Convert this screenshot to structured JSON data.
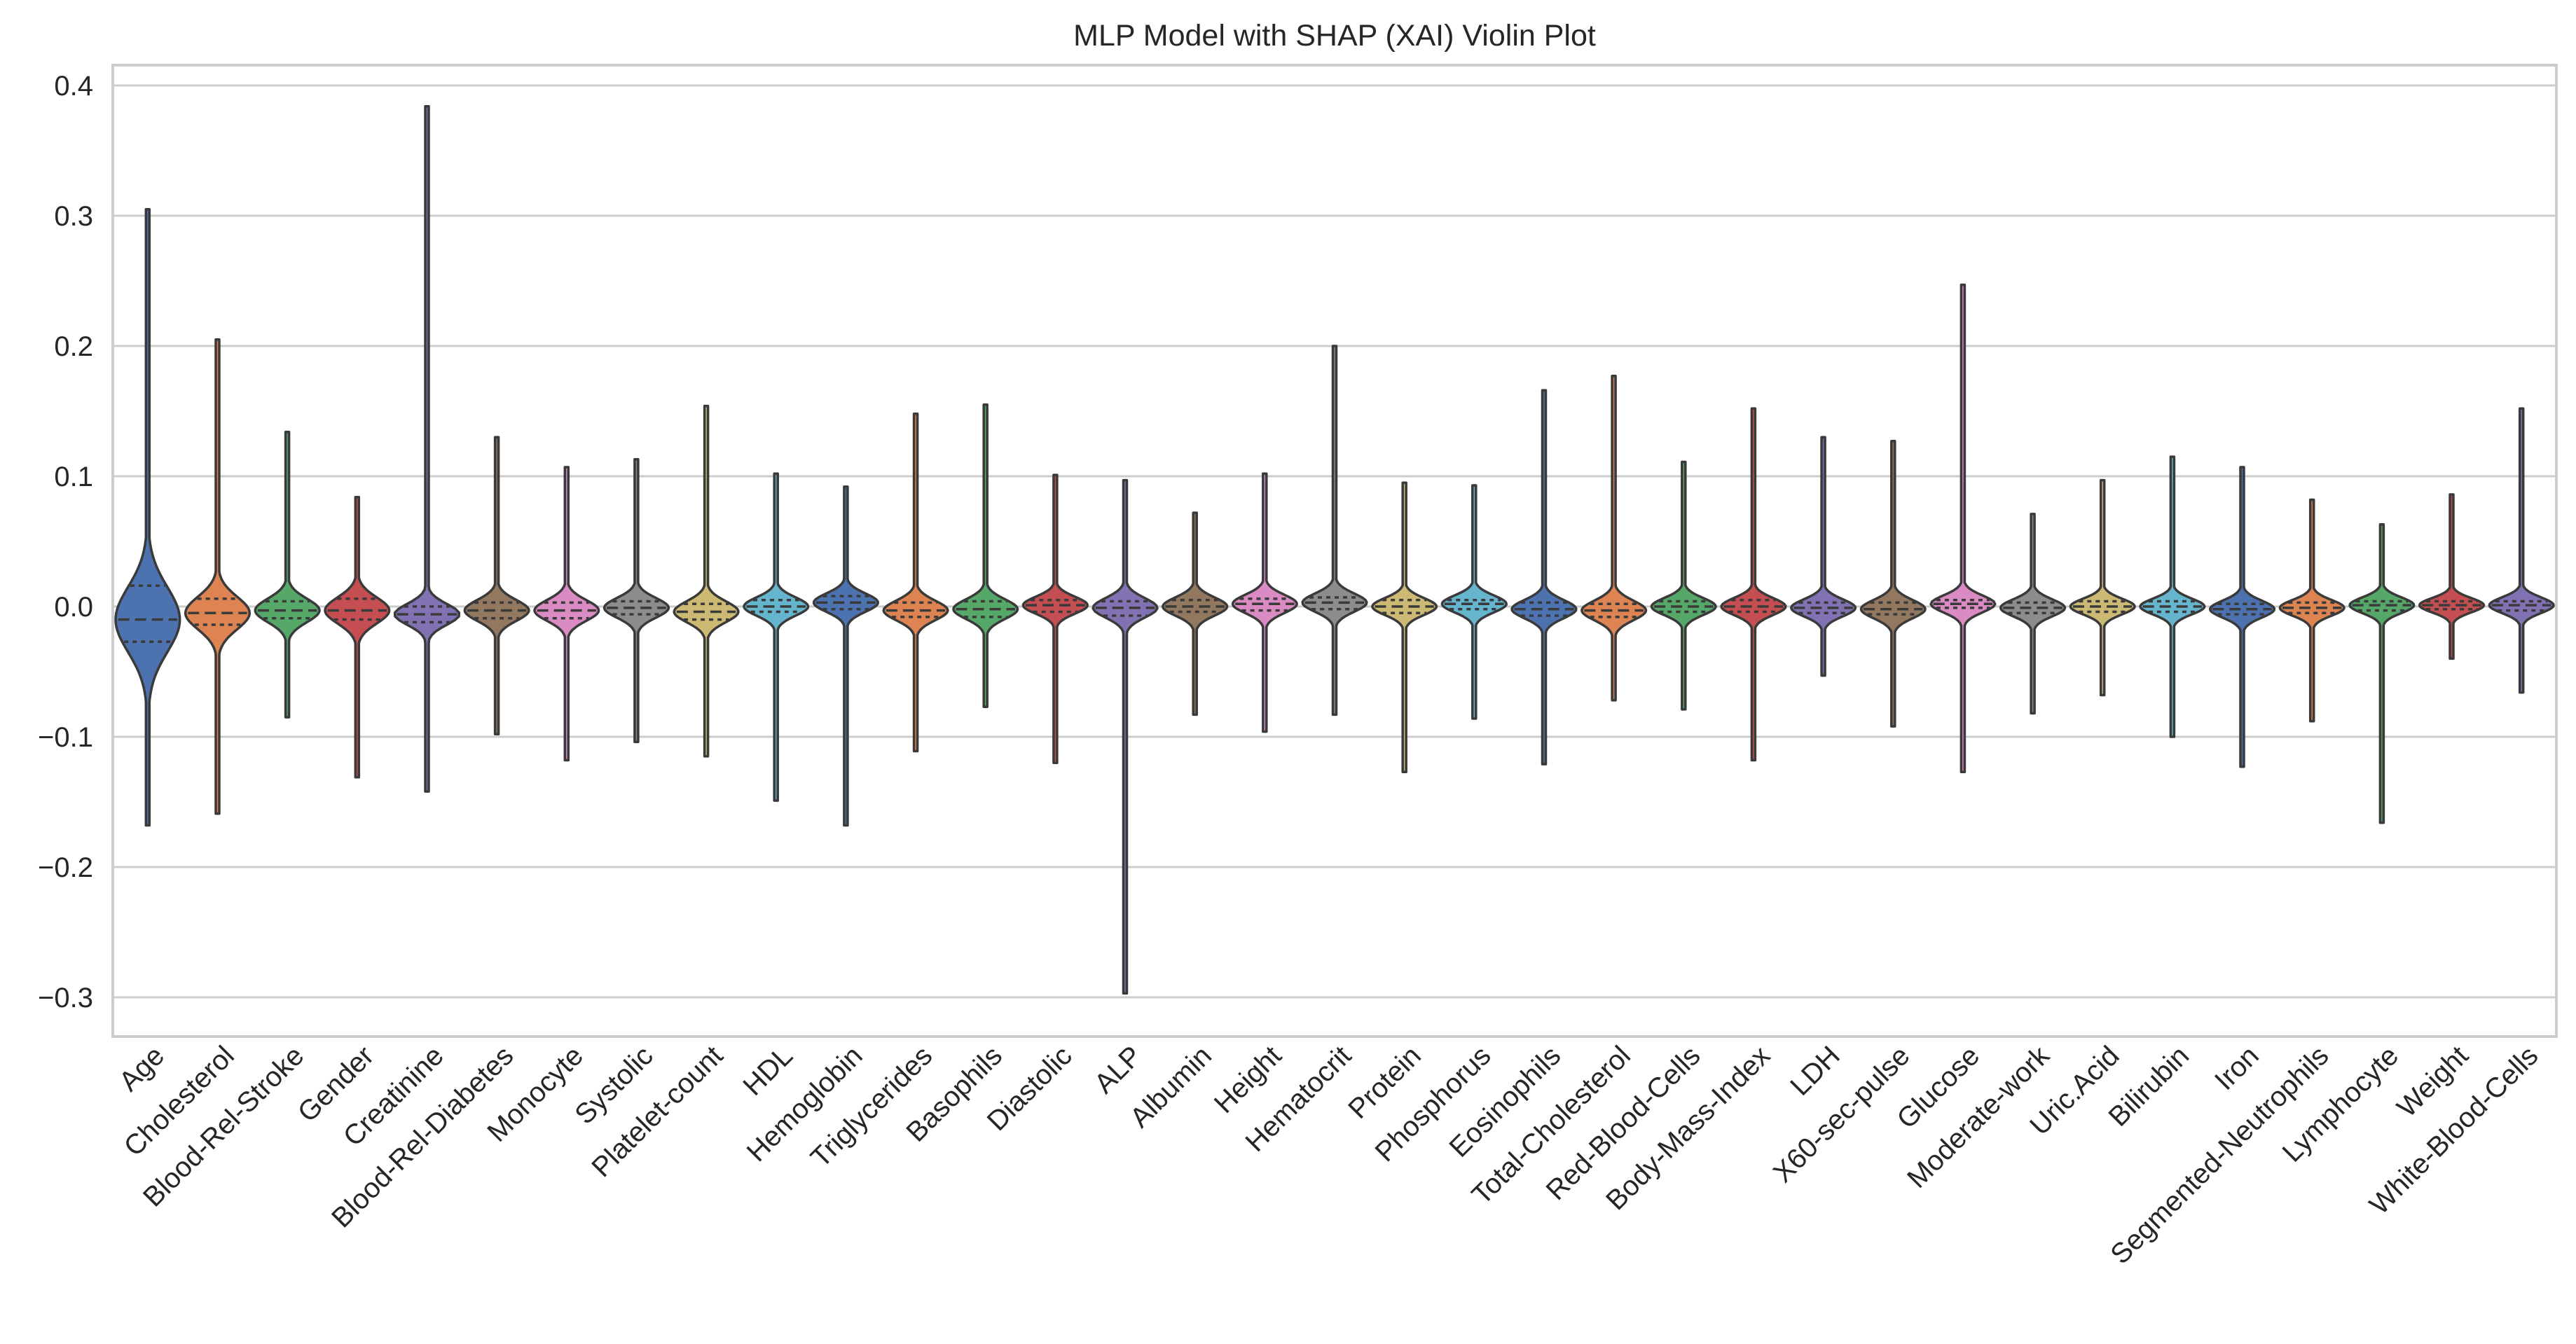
{
  "chart_data": {
    "type": "violin",
    "title": "MLP Model with SHAP (XAI) Violin Plot",
    "xlabel": "",
    "ylabel": "",
    "ylim": [
      -0.33,
      0.42
    ],
    "yticks": [
      0.4,
      0.3,
      0.2,
      0.1,
      0.0,
      -0.1,
      -0.2,
      -0.3
    ],
    "ytick_labels": [
      "0.4",
      "0.3",
      "0.2",
      "0.1",
      "0.0",
      "−0.1",
      "−0.2",
      "−0.3"
    ],
    "grid": true,
    "inner": "quartile",
    "colors": [
      "#4c72b0",
      "#dd8452",
      "#55a868",
      "#c44e52",
      "#8172b3",
      "#937860",
      "#da8bc3",
      "#8c8c8c",
      "#ccb974",
      "#64b5cd"
    ],
    "categories": [
      "Age",
      "Cholesterol",
      "Blood-Rel-Stroke",
      "Gender",
      "Creatinine",
      "Blood-Rel-Diabetes",
      "Monocyte",
      "Systolic",
      "Platelet-count",
      "HDL",
      "Hemoglobin",
      "Triglycerides",
      "Basophils",
      "Diastolic",
      "ALP",
      "Albumin",
      "Height",
      "Hematocrit",
      "Protein",
      "Phosphorus",
      "Eosinophils",
      "Total-Cholesterol",
      "Red-Blood-Cells",
      "Body-Mass-Index",
      "LDH",
      "X60-sec-pulse",
      "Glucose",
      "Moderate-work",
      "Uric.Acid",
      "Bilirubin",
      "Iron",
      "Segmented-Neutrophils",
      "Lymphocyte",
      "Weight",
      "White-Blood-Cells"
    ],
    "series": [
      {
        "name": "Age",
        "min": -0.168,
        "max": 0.305,
        "q1": -0.027,
        "median": -0.01,
        "q3": 0.016,
        "spread": 0.05
      },
      {
        "name": "Cholesterol",
        "min": -0.159,
        "max": 0.205,
        "q1": -0.014,
        "median": -0.005,
        "q3": 0.006,
        "spread": 0.025
      },
      {
        "name": "Blood-Rel-Stroke",
        "min": -0.085,
        "max": 0.134,
        "q1": -0.009,
        "median": -0.003,
        "q3": 0.004,
        "spread": 0.018
      },
      {
        "name": "Gender",
        "min": -0.131,
        "max": 0.084,
        "q1": -0.01,
        "median": -0.003,
        "q3": 0.006,
        "spread": 0.02
      },
      {
        "name": "Creatinine",
        "min": -0.142,
        "max": 0.384,
        "q1": -0.012,
        "median": -0.006,
        "q3": 0.0,
        "spread": 0.016
      },
      {
        "name": "Blood-Rel-Diabetes",
        "min": -0.098,
        "max": 0.13,
        "q1": -0.009,
        "median": -0.003,
        "q3": 0.003,
        "spread": 0.016
      },
      {
        "name": "Monocyte",
        "min": -0.118,
        "max": 0.107,
        "q1": -0.009,
        "median": -0.003,
        "q3": 0.003,
        "spread": 0.016
      },
      {
        "name": "Systolic",
        "min": -0.104,
        "max": 0.113,
        "q1": -0.006,
        "median": -0.001,
        "q3": 0.004,
        "spread": 0.015
      },
      {
        "name": "Platelet-count",
        "min": -0.115,
        "max": 0.154,
        "q1": -0.01,
        "median": -0.004,
        "q3": 0.002,
        "spread": 0.016
      },
      {
        "name": "HDL",
        "min": -0.149,
        "max": 0.102,
        "q1": -0.004,
        "median": 0.0,
        "q3": 0.005,
        "spread": 0.014
      },
      {
        "name": "Hemoglobin",
        "min": -0.168,
        "max": 0.092,
        "q1": -0.002,
        "median": 0.003,
        "q3": 0.008,
        "spread": 0.014
      },
      {
        "name": "Triglycerides",
        "min": -0.111,
        "max": 0.148,
        "q1": -0.008,
        "median": -0.003,
        "q3": 0.003,
        "spread": 0.015
      },
      {
        "name": "Basophils",
        "min": -0.077,
        "max": 0.155,
        "q1": -0.008,
        "median": -0.002,
        "q3": 0.004,
        "spread": 0.015
      },
      {
        "name": "Diastolic",
        "min": -0.12,
        "max": 0.101,
        "q1": -0.004,
        "median": 0.001,
        "q3": 0.005,
        "spread": 0.013
      },
      {
        "name": "ALP",
        "min": -0.297,
        "max": 0.097,
        "q1": -0.007,
        "median": -0.001,
        "q3": 0.004,
        "spread": 0.015
      },
      {
        "name": "Albumin",
        "min": -0.083,
        "max": 0.072,
        "q1": -0.004,
        "median": 0.0,
        "q3": 0.005,
        "spread": 0.014
      },
      {
        "name": "Height",
        "min": -0.096,
        "max": 0.102,
        "q1": -0.003,
        "median": 0.002,
        "q3": 0.006,
        "spread": 0.014
      },
      {
        "name": "Hematocrit",
        "min": -0.083,
        "max": 0.2,
        "q1": -0.002,
        "median": 0.003,
        "q3": 0.007,
        "spread": 0.014
      },
      {
        "name": "Protein",
        "min": -0.127,
        "max": 0.095,
        "q1": -0.005,
        "median": 0.0,
        "q3": 0.005,
        "spread": 0.013
      },
      {
        "name": "Phosphorus",
        "min": -0.086,
        "max": 0.093,
        "q1": -0.002,
        "median": 0.002,
        "q3": 0.005,
        "spread": 0.013
      },
      {
        "name": "Eosinophils",
        "min": -0.121,
        "max": 0.166,
        "q1": -0.007,
        "median": -0.002,
        "q3": 0.003,
        "spread": 0.014
      },
      {
        "name": "Total-Cholesterol",
        "min": -0.072,
        "max": 0.177,
        "q1": -0.008,
        "median": -0.003,
        "q3": 0.002,
        "spread": 0.015
      },
      {
        "name": "Red-Blood-Cells",
        "min": -0.079,
        "max": 0.111,
        "q1": -0.004,
        "median": 0.0,
        "q3": 0.004,
        "spread": 0.013
      },
      {
        "name": "Body-Mass-Index",
        "min": -0.118,
        "max": 0.152,
        "q1": -0.004,
        "median": 0.0,
        "q3": 0.005,
        "spread": 0.013
      },
      {
        "name": "LDH",
        "min": -0.053,
        "max": 0.13,
        "q1": -0.005,
        "median": -0.001,
        "q3": 0.003,
        "spread": 0.013
      },
      {
        "name": "X60-sec-pulse",
        "min": -0.092,
        "max": 0.127,
        "q1": -0.006,
        "median": -0.002,
        "q3": 0.003,
        "spread": 0.014
      },
      {
        "name": "Glucose",
        "min": -0.127,
        "max": 0.247,
        "q1": -0.001,
        "median": 0.002,
        "q3": 0.005,
        "spread": 0.013
      },
      {
        "name": "Moderate-work",
        "min": -0.082,
        "max": 0.071,
        "q1": -0.005,
        "median": -0.001,
        "q3": 0.003,
        "spread": 0.013
      },
      {
        "name": "Uric.Acid",
        "min": -0.068,
        "max": 0.097,
        "q1": -0.004,
        "median": 0.0,
        "q3": 0.004,
        "spread": 0.012
      },
      {
        "name": "Bilirubin",
        "min": -0.1,
        "max": 0.115,
        "q1": -0.004,
        "median": 0.0,
        "q3": 0.004,
        "spread": 0.012
      },
      {
        "name": "Iron",
        "min": -0.123,
        "max": 0.107,
        "q1": -0.006,
        "median": -0.002,
        "q3": 0.002,
        "spread": 0.013
      },
      {
        "name": "Segmented-Neutrophils",
        "min": -0.088,
        "max": 0.082,
        "q1": -0.005,
        "median": -0.001,
        "q3": 0.003,
        "spread": 0.012
      },
      {
        "name": "Lymphocyte",
        "min": -0.166,
        "max": 0.063,
        "q1": -0.003,
        "median": 0.001,
        "q3": 0.004,
        "spread": 0.012
      },
      {
        "name": "Weight",
        "min": -0.04,
        "max": 0.086,
        "q1": -0.002,
        "median": 0.001,
        "q3": 0.004,
        "spread": 0.011
      },
      {
        "name": "White-Blood-Cells",
        "min": -0.066,
        "max": 0.152,
        "q1": -0.003,
        "median": 0.001,
        "q3": 0.004,
        "spread": 0.012
      }
    ]
  }
}
